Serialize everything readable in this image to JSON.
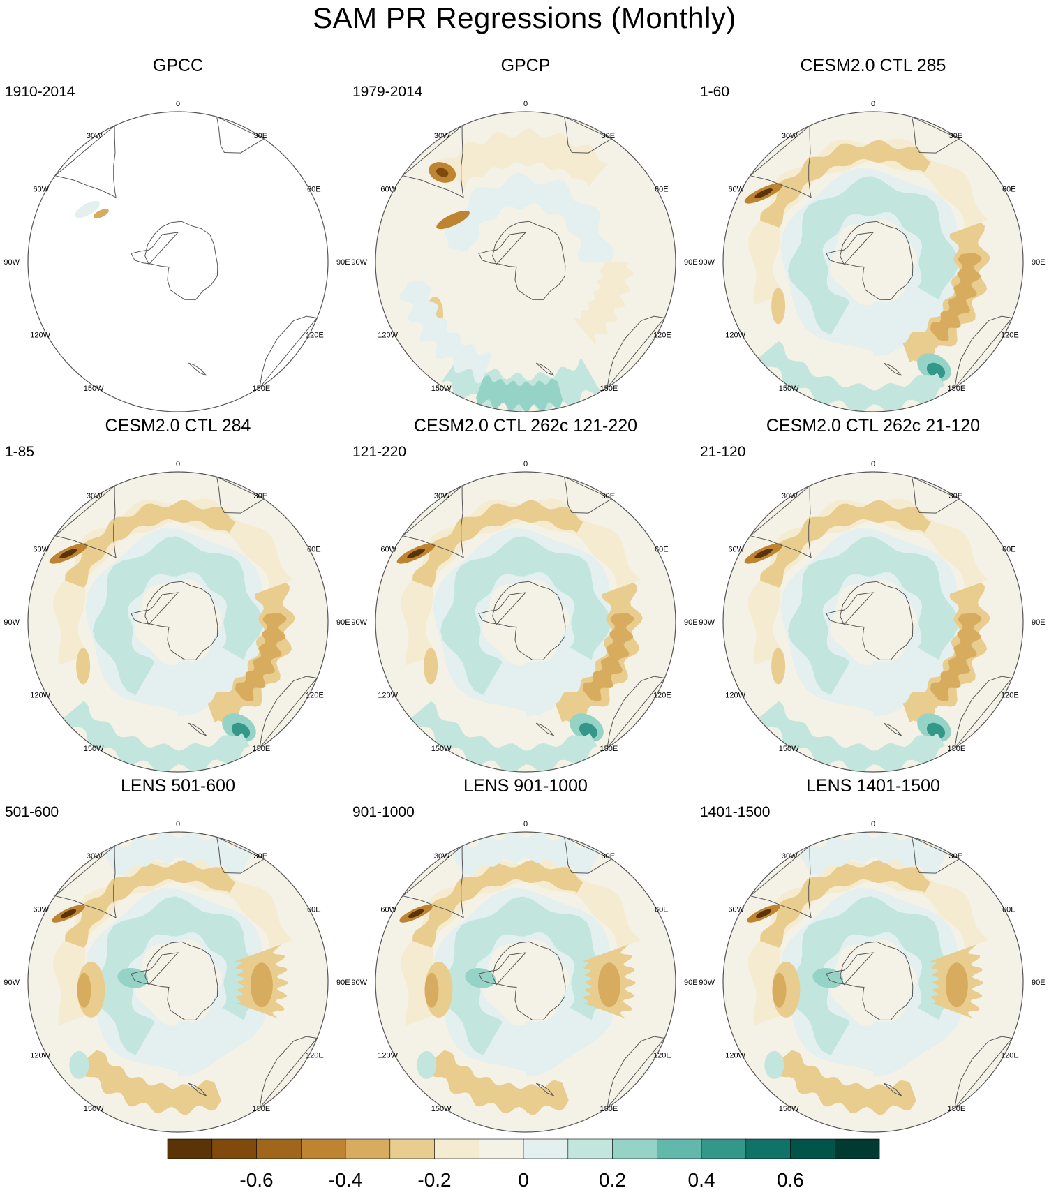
{
  "title": "SAM PR Regressions (Monthly)",
  "panels": [
    {
      "title": "GPCC",
      "period": "1910-2014",
      "style": "obs_land"
    },
    {
      "title": "GPCP",
      "period": "1979-2014",
      "style": "obs"
    },
    {
      "title": "CESM2.0 CTL 285",
      "period": "1-60",
      "style": "cesm"
    },
    {
      "title": "CESM2.0 CTL 284",
      "period": "1-85",
      "style": "cesm"
    },
    {
      "title": "CESM2.0 CTL 262c 121-220",
      "period": "121-220",
      "style": "cesm"
    },
    {
      "title": "CESM2.0 CTL 262c 21-120",
      "period": "21-120",
      "style": "cesm"
    },
    {
      "title": "LENS 501-600",
      "period": "501-600",
      "style": "lens"
    },
    {
      "title": "LENS 901-1000",
      "period": "901-1000",
      "style": "lens"
    },
    {
      "title": "LENS 1401-1500",
      "period": "1401-1500",
      "style": "lens"
    }
  ],
  "longitude_labels": [
    "0",
    "30E",
    "60E",
    "90E",
    "120E",
    "150E",
    "180",
    "150W",
    "120W",
    "90W",
    "60W",
    "30W"
  ],
  "colorbar": {
    "colors": [
      "#5a3307",
      "#7f4a0c",
      "#a0661b",
      "#bf8431",
      "#d8ac5e",
      "#e9cd8f",
      "#f5ebd0",
      "#f4f1e6",
      "#e3f0ef",
      "#c2e6de",
      "#94d3c6",
      "#62b9ab",
      "#33978a",
      "#0f7467",
      "#015548",
      "#003a30"
    ],
    "tick_labels": [
      "-0.6",
      "-0.4",
      "-0.2",
      "0",
      "0.2",
      "0.4",
      "0.6"
    ]
  }
}
